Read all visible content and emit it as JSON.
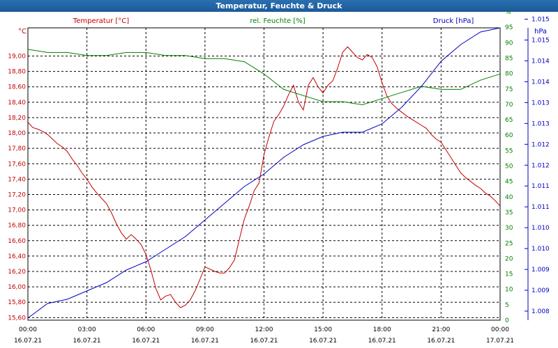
{
  "window": {
    "title": "Temperatur, Feuchte & Druck"
  },
  "colors": {
    "temperature": "#c00000",
    "humidity": "#008000",
    "pressure": "#0000c0",
    "grid": "#000000",
    "text": "#000000"
  },
  "chart_data": {
    "type": "line",
    "grid": true,
    "x_axis": {
      "ticks": [
        {
          "time": "00:00",
          "date": "16.07.21"
        },
        {
          "time": "03:00",
          "date": "16.07.21"
        },
        {
          "time": "06:00",
          "date": "16.07.21"
        },
        {
          "time": "09:00",
          "date": "16.07.21"
        },
        {
          "time": "12:00",
          "date": "16.07.21"
        },
        {
          "time": "15:00",
          "date": "16.07.21"
        },
        {
          "time": "18:00",
          "date": "16.07.21"
        },
        {
          "time": "21:00",
          "date": "16.07.21"
        },
        {
          "time": "00:00",
          "date": "17.07.21"
        }
      ],
      "range_hours": [
        0,
        24
      ]
    },
    "axes": {
      "left": {
        "unit": "°C",
        "ylim": [
          15.5667,
          19.3667
        ],
        "ticks": [
          "15,60",
          "15,80",
          "16,00",
          "16,20",
          "16,40",
          "16,60",
          "16,80",
          "17,00",
          "17,20",
          "17,40",
          "17,60",
          "17,80",
          "18,00",
          "18,20",
          "18,40",
          "18,60",
          "18,80",
          "19,00"
        ]
      },
      "right_inner": {
        "unit": "%",
        "ylim": [
          0,
          95
        ],
        "ticks": [
          "0",
          "5",
          "10",
          "15",
          "20",
          "25",
          "30",
          "35",
          "40",
          "45",
          "50",
          "55",
          "60",
          "65",
          "70",
          "75",
          "80",
          "85",
          "90",
          "95",
          "%"
        ]
      },
      "right_outer": {
        "unit": "hPa",
        "ylim": [
          1008.0,
          1015.0
        ],
        "ticks": [
          "1.008",
          "1.009",
          "1.009",
          "1.010",
          "1.010",
          "1.011",
          "1.011",
          "1.012",
          "1.012",
          "1.013",
          "1.013",
          "1.014",
          "1.014",
          "1.015",
          "1.015"
        ]
      }
    },
    "series": [
      {
        "name": "Temperatur [°C]",
        "axis": "left",
        "x": [
          0,
          0.25,
          0.5,
          0.75,
          1,
          1.25,
          1.5,
          1.75,
          2,
          2.25,
          2.5,
          2.75,
          3,
          3.25,
          3.5,
          3.75,
          4,
          4.25,
          4.5,
          4.75,
          5,
          5.25,
          5.5,
          5.75,
          6,
          6.25,
          6.5,
          6.75,
          7,
          7.25,
          7.5,
          7.75,
          8,
          8.25,
          8.5,
          8.75,
          9,
          9.25,
          9.5,
          9.75,
          10,
          10.25,
          10.5,
          10.75,
          11,
          11.25,
          11.5,
          11.75,
          12,
          12.25,
          12.5,
          12.75,
          13,
          13.25,
          13.5,
          13.75,
          14,
          14.25,
          14.5,
          14.75,
          15,
          15.25,
          15.5,
          15.75,
          16,
          16.25,
          16.5,
          16.75,
          17,
          17.25,
          17.5,
          17.75,
          18,
          18.25,
          18.5,
          18.75,
          19,
          19.25,
          19.5,
          19.75,
          20,
          20.25,
          20.5,
          20.75,
          21,
          21.25,
          21.5,
          21.75,
          22,
          22.25,
          22.5,
          22.75,
          23,
          23.25,
          23.5,
          23.75,
          24
        ],
        "y": [
          18.14,
          18.07,
          18.05,
          18.02,
          17.98,
          17.92,
          17.86,
          17.82,
          17.76,
          17.66,
          17.58,
          17.48,
          17.4,
          17.3,
          17.22,
          17.15,
          17.08,
          16.96,
          16.82,
          16.7,
          16.62,
          16.68,
          16.62,
          16.55,
          16.42,
          16.22,
          15.98,
          15.83,
          15.88,
          15.9,
          15.8,
          15.73,
          15.76,
          15.83,
          15.95,
          16.1,
          16.26,
          16.23,
          16.2,
          16.18,
          16.18,
          16.25,
          16.35,
          16.62,
          16.88,
          17.05,
          17.25,
          17.35,
          17.72,
          17.95,
          18.15,
          18.24,
          18.35,
          18.5,
          18.62,
          18.4,
          18.3,
          18.62,
          18.72,
          18.6,
          18.52,
          18.62,
          18.68,
          18.85,
          19.05,
          19.12,
          19.05,
          18.98,
          18.95,
          19.02,
          18.98,
          18.86,
          18.65,
          18.48,
          18.38,
          18.32,
          18.27,
          18.22,
          18.18,
          18.14,
          18.1,
          18.06,
          17.98,
          17.92,
          17.88,
          17.78,
          17.68,
          17.58,
          17.48,
          17.42,
          17.37,
          17.32,
          17.28,
          17.22,
          17.18,
          17.12,
          17.05
        ]
      },
      {
        "name": "rel. Feuchte [%]",
        "axis": "right_inner",
        "x": [
          0,
          1,
          2,
          3,
          4,
          5,
          6,
          7,
          8,
          9,
          10,
          11,
          12,
          13,
          14,
          15,
          16,
          17,
          18,
          19,
          20,
          21,
          22,
          23,
          24
        ],
        "y": [
          88,
          87,
          87,
          86,
          86,
          87,
          87,
          86,
          86,
          85,
          85,
          84,
          80,
          75,
          73,
          71,
          71,
          70,
          72,
          74,
          76,
          75,
          75,
          78,
          80
        ]
      },
      {
        "name": "Druck [hPa]",
        "axis": "right_outer",
        "x": [
          0,
          1,
          2,
          3,
          4,
          5,
          6,
          7,
          8,
          9,
          10,
          11,
          12,
          13,
          14,
          15,
          16,
          17,
          18,
          19,
          20,
          21,
          22,
          23,
          24
        ],
        "y": [
          1008.05,
          1008.4,
          1008.5,
          1008.7,
          1008.9,
          1009.2,
          1009.4,
          1009.7,
          1010.0,
          1010.4,
          1010.8,
          1011.2,
          1011.5,
          1011.9,
          1012.2,
          1012.4,
          1012.5,
          1012.5,
          1012.7,
          1013.1,
          1013.6,
          1014.2,
          1014.6,
          1014.9,
          1015.0
        ]
      }
    ],
    "legend": [
      "Temperatur [°C]",
      "rel. Feuchte [%]",
      "Druck [hPa]"
    ]
  }
}
